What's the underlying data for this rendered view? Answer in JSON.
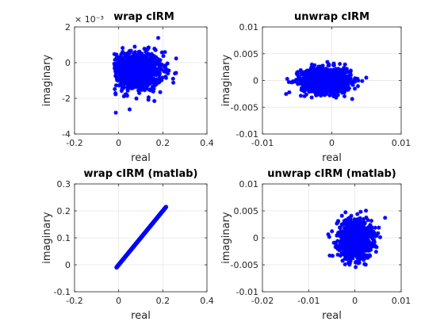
{
  "chart_data": [
    {
      "type": "scatter",
      "title": "wrap cIRM",
      "xlabel": "real",
      "ylabel": "imaginary",
      "xlim": [
        -0.2,
        0.4
      ],
      "ylim": [
        -4,
        2
      ],
      "xticks": [
        "-0.2",
        "0",
        "0.2",
        "0.4"
      ],
      "yticks": [
        "-4",
        "-2",
        "0",
        "2"
      ],
      "yexponent": "× 10⁻³",
      "grid": true,
      "marker": "asterisk",
      "color": "#0000ff",
      "cloud": {
        "center": [
          0.08,
          -0.5
        ],
        "spread": [
          0.06,
          0.55
        ],
        "x_range": [
          -0.02,
          0.27
        ],
        "y_range": [
          -3.7,
          1.5
        ],
        "n": 900
      }
    },
    {
      "type": "scatter",
      "title": "unwrap cIRM",
      "xlabel": "real",
      "ylabel": "imaginary",
      "xlim": [
        -0.01,
        0.01
      ],
      "ylim": [
        -0.01,
        0.01
      ],
      "xticks": [
        "-0.01",
        "0",
        "0.01"
      ],
      "yticks": [
        "-0.01",
        "-0.005",
        "0",
        "0.005",
        "0.01"
      ],
      "grid": true,
      "marker": "asterisk",
      "color": "#0000ff",
      "cloud": {
        "center": [
          -0.0008,
          0.0
        ],
        "spread": [
          0.0018,
          0.0012
        ],
        "x_range": [
          -0.0085,
          0.0075
        ],
        "y_range": [
          -0.0052,
          0.0065
        ],
        "n": 900
      }
    },
    {
      "type": "scatter",
      "title": "wrap cIRM (matlab)",
      "xlabel": "real",
      "ylabel": "imaginary",
      "xlim": [
        -0.2,
        0.4
      ],
      "ylim": [
        -0.1,
        0.3
      ],
      "xticks": [
        "-0.2",
        "0",
        "0.2",
        "0.4"
      ],
      "yticks": [
        "-0.1",
        "0",
        "0.1",
        "0.2",
        "0.3"
      ],
      "grid": true,
      "marker": "asterisk",
      "color": "#0000ff",
      "line_segment": {
        "from": [
          -0.01,
          -0.01
        ],
        "to": [
          0.215,
          0.215
        ],
        "n": 420
      }
    },
    {
      "type": "scatter",
      "title": "unwrap cIRM (matlab)",
      "xlabel": "real",
      "ylabel": "imaginary",
      "xlim": [
        -0.02,
        0.01
      ],
      "ylim": [
        -0.01,
        0.01
      ],
      "xticks": [
        "-0.02",
        "-0.01",
        "0",
        "0.01"
      ],
      "yticks": [
        "-0.01",
        "-0.005",
        "0",
        "0.005",
        "0.01"
      ],
      "grid": true,
      "marker": "asterisk",
      "color": "#0000ff",
      "cloud": {
        "center": [
          0.0,
          -0.0002
        ],
        "spread": [
          0.0018,
          0.0018
        ],
        "x_range": [
          -0.0115,
          0.0075
        ],
        "y_range": [
          -0.0075,
          0.0093
        ],
        "n": 900
      }
    }
  ]
}
